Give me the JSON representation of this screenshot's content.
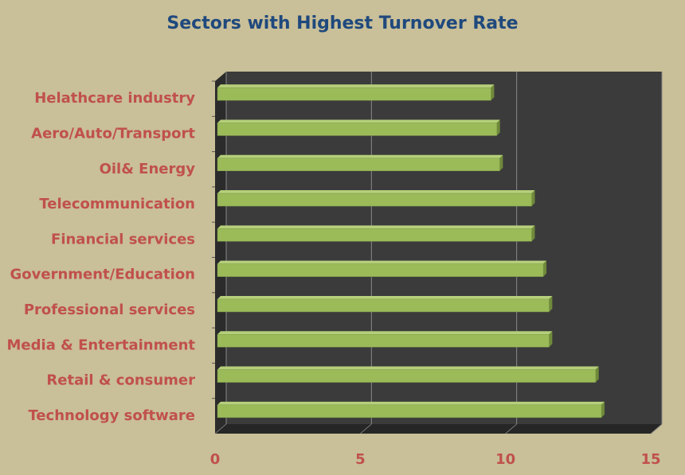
{
  "chart_data": {
    "type": "bar",
    "orientation": "horizontal",
    "title": "Sectors with Highest Turnover Rate",
    "categories": [
      "Helathcare industry",
      "Aero/Auto/Transport",
      "Oil& Energy",
      "Telecommunication",
      "Financial services",
      "Government/Education",
      "Professional services",
      "Media & Entertainment",
      "Retail & consumer",
      "Technology software"
    ],
    "values": [
      9.5,
      9.7,
      9.8,
      10.9,
      10.9,
      11.3,
      11.5,
      11.5,
      13.1,
      13.3
    ],
    "color": "#9bbb59",
    "xlim": [
      0,
      15
    ],
    "xticks": [
      0,
      5,
      10,
      15
    ],
    "grid": true
  }
}
